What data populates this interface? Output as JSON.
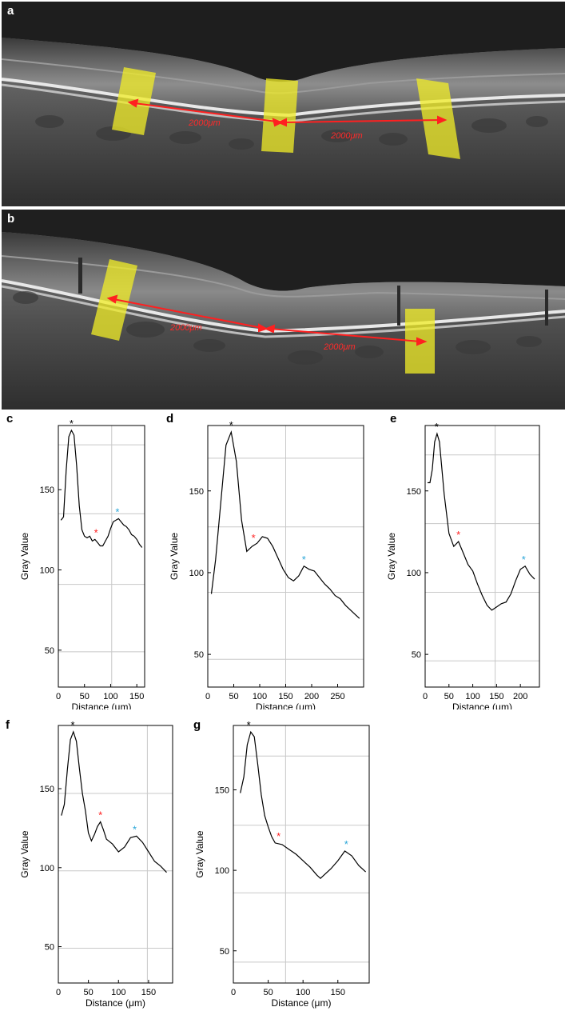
{
  "oct_images": [
    {
      "letter": "a",
      "distance_labels": [
        "2000μm",
        "2000μm"
      ]
    },
    {
      "letter": "b",
      "distance_labels": [
        "2000μm",
        "2000μm"
      ]
    }
  ],
  "colors": {
    "band": "#f2ee27",
    "arrow": "#ff2020",
    "peak1": "#000000",
    "peak2": "#ff2020",
    "peak3": "#2aa6d8",
    "grid": "#c8c8c8"
  },
  "chart_data": [
    {
      "letter": "c",
      "type": "line",
      "xlabel": "Distance (μm)",
      "ylabel": "Gray Value",
      "xlim": [
        0,
        165
      ],
      "ylim": [
        27,
        190
      ],
      "xticks": [
        0,
        50,
        100,
        150
      ],
      "yticks": [
        50,
        100,
        150
      ],
      "grid_y": [
        49,
        91,
        135,
        178
      ],
      "grid_x": [
        102
      ],
      "x": [
        5,
        10,
        15,
        20,
        25,
        30,
        35,
        40,
        45,
        50,
        55,
        60,
        65,
        70,
        75,
        80,
        85,
        90,
        95,
        100,
        105,
        110,
        115,
        120,
        125,
        130,
        135,
        140,
        145,
        150,
        155,
        160
      ],
      "y": [
        131,
        133,
        162,
        183,
        187,
        184,
        165,
        140,
        125,
        121,
        120,
        121,
        118,
        119,
        117,
        115,
        115,
        118,
        121,
        126,
        130,
        131,
        132,
        130,
        128,
        127,
        125,
        122,
        121,
        119,
        116,
        114
      ],
      "peaks": [
        {
          "label": "*",
          "x": 25,
          "y": 187,
          "color": "#000000"
        },
        {
          "label": "*",
          "x": 72,
          "y": 119,
          "color": "#ff2020"
        },
        {
          "label": "*",
          "x": 113,
          "y": 132,
          "color": "#2aa6d8"
        }
      ]
    },
    {
      "letter": "d",
      "type": "line",
      "xlabel": "Distance (μm)",
      "ylabel": "Gray Value",
      "xlim": [
        0,
        300
      ],
      "ylim": [
        30,
        190
      ],
      "xticks": [
        0,
        50,
        100,
        150,
        200,
        250
      ],
      "yticks": [
        50,
        100,
        150
      ],
      "grid_y": [
        47,
        88,
        128,
        170
      ],
      "grid_x": [
        150
      ],
      "x": [
        7,
        15,
        25,
        35,
        45,
        55,
        65,
        75,
        85,
        95,
        105,
        115,
        125,
        135,
        145,
        155,
        165,
        175,
        185,
        195,
        205,
        215,
        225,
        235,
        245,
        255,
        265,
        275,
        285,
        292
      ],
      "y": [
        87,
        108,
        143,
        178,
        186,
        168,
        132,
        113,
        116,
        118,
        122,
        121,
        116,
        109,
        102,
        97,
        95,
        98,
        104,
        102,
        101,
        97,
        93,
        90,
        86,
        84,
        80,
        77,
        74,
        72
      ],
      "peaks": [
        {
          "label": "*",
          "x": 45,
          "y": 186,
          "color": "#000000"
        },
        {
          "label": "*",
          "x": 88,
          "y": 117,
          "color": "#ff2020"
        },
        {
          "label": "*",
          "x": 185,
          "y": 104,
          "color": "#2aa6d8"
        }
      ]
    },
    {
      "letter": "e",
      "type": "line",
      "xlabel": "Distance (μm)",
      "ylabel": "Gray Value",
      "xlim": [
        0,
        240
      ],
      "ylim": [
        30,
        190
      ],
      "xticks": [
        0,
        50,
        100,
        150,
        200
      ],
      "yticks": [
        50,
        100,
        150
      ],
      "grid_y": [
        46,
        88,
        130,
        172
      ],
      "grid_x": [
        147
      ],
      "x": [
        5,
        10,
        15,
        20,
        25,
        30,
        40,
        50,
        60,
        70,
        80,
        90,
        100,
        110,
        120,
        130,
        140,
        150,
        160,
        170,
        180,
        190,
        200,
        210,
        220,
        230
      ],
      "y": [
        155,
        155,
        163,
        180,
        185,
        180,
        148,
        124,
        116,
        119,
        112,
        105,
        101,
        93,
        86,
        80,
        77,
        79,
        81,
        82,
        87,
        95,
        102,
        104,
        99,
        96
      ],
      "peaks": [
        {
          "label": "*",
          "x": 24,
          "y": 185,
          "color": "#000000"
        },
        {
          "label": "*",
          "x": 70,
          "y": 119,
          "color": "#ff2020"
        },
        {
          "label": "*",
          "x": 207,
          "y": 104,
          "color": "#2aa6d8"
        }
      ]
    },
    {
      "letter": "f",
      "type": "line",
      "xlabel": "Distance (μm)",
      "ylabel": "Gray Value",
      "xlim": [
        0,
        190
      ],
      "ylim": [
        27,
        190
      ],
      "xticks": [
        0,
        50,
        100,
        150
      ],
      "yticks": [
        50,
        100,
        150
      ],
      "grid_y": [
        49,
        98,
        147
      ],
      "grid_x": [
        148
      ],
      "x": [
        5,
        10,
        15,
        20,
        25,
        30,
        35,
        40,
        45,
        50,
        55,
        60,
        65,
        70,
        75,
        80,
        90,
        100,
        110,
        120,
        130,
        140,
        150,
        160,
        170,
        180
      ],
      "y": [
        133,
        140,
        162,
        181,
        186,
        180,
        163,
        147,
        136,
        122,
        117,
        121,
        126,
        129,
        124,
        118,
        115,
        110,
        113,
        119,
        120,
        116,
        110,
        104,
        101,
        97
      ],
      "peaks": [
        {
          "label": "*",
          "x": 24,
          "y": 186,
          "color": "#000000"
        },
        {
          "label": "*",
          "x": 70,
          "y": 129,
          "color": "#ff2020"
        },
        {
          "label": "*",
          "x": 127,
          "y": 120,
          "color": "#2aa6d8"
        }
      ]
    },
    {
      "letter": "g",
      "type": "line",
      "xlabel": "Distance (μm)",
      "ylabel": "Gray Value",
      "xlim": [
        0,
        195
      ],
      "ylim": [
        30,
        190
      ],
      "xticks": [
        0,
        50,
        100,
        150
      ],
      "yticks": [
        50,
        100,
        150
      ],
      "grid_y": [
        43,
        86,
        128,
        171
      ],
      "grid_x": [
        75
      ],
      "x": [
        10,
        15,
        20,
        25,
        30,
        35,
        40,
        45,
        50,
        55,
        60,
        70,
        80,
        90,
        100,
        110,
        120,
        125,
        130,
        140,
        150,
        160,
        170,
        180,
        190
      ],
      "y": [
        148,
        158,
        178,
        186,
        183,
        166,
        147,
        134,
        127,
        121,
        117,
        116,
        113,
        110,
        106,
        102,
        97,
        95,
        97,
        101,
        106,
        112,
        109,
        103,
        99
      ],
      "peaks": [
        {
          "label": "*",
          "x": 22,
          "y": 186,
          "color": "#000000"
        },
        {
          "label": "*",
          "x": 65,
          "y": 117,
          "color": "#ff2020"
        },
        {
          "label": "*",
          "x": 162,
          "y": 112,
          "color": "#2aa6d8"
        }
      ]
    }
  ]
}
